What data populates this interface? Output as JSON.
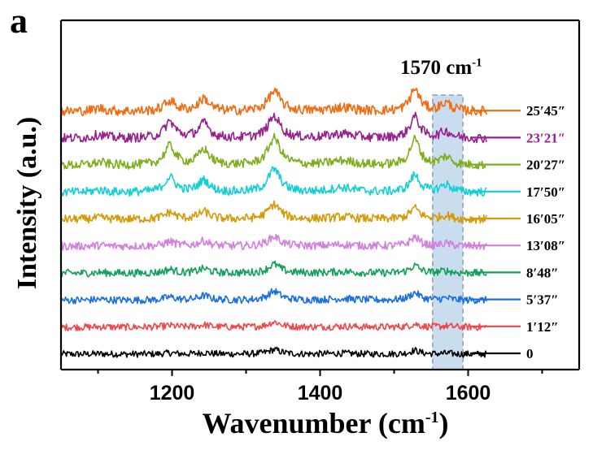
{
  "panel_label": "a",
  "chart_data": {
    "type": "line",
    "title": "",
    "xlabel_main": "Wavenumber (cm",
    "xlabel_sup": "-1",
    "xlabel_close": ")",
    "ylabel": "Intensity (a.u.)",
    "xlim": [
      1050,
      1750
    ],
    "x_ticks": [
      "1200",
      "1400",
      "1600"
    ],
    "x_tick_values": [
      1200,
      1400,
      1600
    ],
    "x_data_range": [
      1050,
      1625
    ],
    "highlight_band": [
      1552,
      1593
    ],
    "highlight_color": "#c9ddef",
    "annotation": {
      "main": "1570 cm",
      "sup": "-1"
    },
    "peaks": [
      1102,
      1197,
      1243,
      1338,
      1430,
      1528,
      1570
    ],
    "series": [
      {
        "name": "0",
        "color": "#000000",
        "offset": 0,
        "amplitudes": [
          0.05,
          0.15,
          0.2,
          0.6,
          0.1,
          0.5,
          0.1
        ],
        "labelColor": "#000000"
      },
      {
        "name": "1′12″",
        "color": "#f0464a",
        "offset": 1,
        "amplitudes": [
          0.05,
          0.2,
          0.3,
          0.7,
          0.1,
          0.4,
          0.15
        ],
        "labelColor": "#000000"
      },
      {
        "name": "5′37″",
        "color": "#1a6fe0",
        "offset": 2,
        "amplitudes": [
          0.1,
          0.4,
          0.6,
          1.2,
          0.2,
          1.0,
          0.25
        ],
        "labelColor": "#000000"
      },
      {
        "name": "8′48″",
        "color": "#12a05a",
        "offset": 3,
        "amplitudes": [
          0.1,
          0.5,
          0.6,
          1.2,
          0.2,
          1.0,
          0.3
        ],
        "labelColor": "#000000"
      },
      {
        "name": "13′08″",
        "color": "#d37fe0",
        "offset": 4,
        "amplitudes": [
          0.1,
          0.6,
          0.7,
          1.3,
          0.2,
          1.2,
          0.35
        ],
        "labelColor": "#000000"
      },
      {
        "name": "16′05″",
        "color": "#d49a08",
        "offset": 5,
        "amplitudes": [
          0.2,
          0.9,
          1.0,
          2.0,
          0.3,
          1.5,
          0.5
        ],
        "labelColor": "#000000"
      },
      {
        "name": "17′50″",
        "color": "#12cfd6",
        "offset": 6,
        "amplitudes": [
          0.3,
          2.0,
          1.6,
          3.1,
          0.6,
          2.3,
          1.0
        ],
        "labelColor": "#000000"
      },
      {
        "name": "20′27″",
        "color": "#7fae1d",
        "offset": 7,
        "amplitudes": [
          0.4,
          2.6,
          2.1,
          3.7,
          0.6,
          3.5,
          1.1
        ],
        "labelColor": "#000000"
      },
      {
        "name": "23′21″",
        "color": "#97208f",
        "offset": 8,
        "amplitudes": [
          0.5,
          2.2,
          2.0,
          3.0,
          0.6,
          2.9,
          0.9
        ],
        "labelColor": "#97208f"
      },
      {
        "name": "25′45″",
        "color": "#f26b10",
        "offset": 9,
        "amplitudes": [
          0.4,
          1.4,
          1.7,
          2.7,
          0.5,
          3.0,
          1.1
        ],
        "labelColor": "#000000"
      }
    ]
  }
}
